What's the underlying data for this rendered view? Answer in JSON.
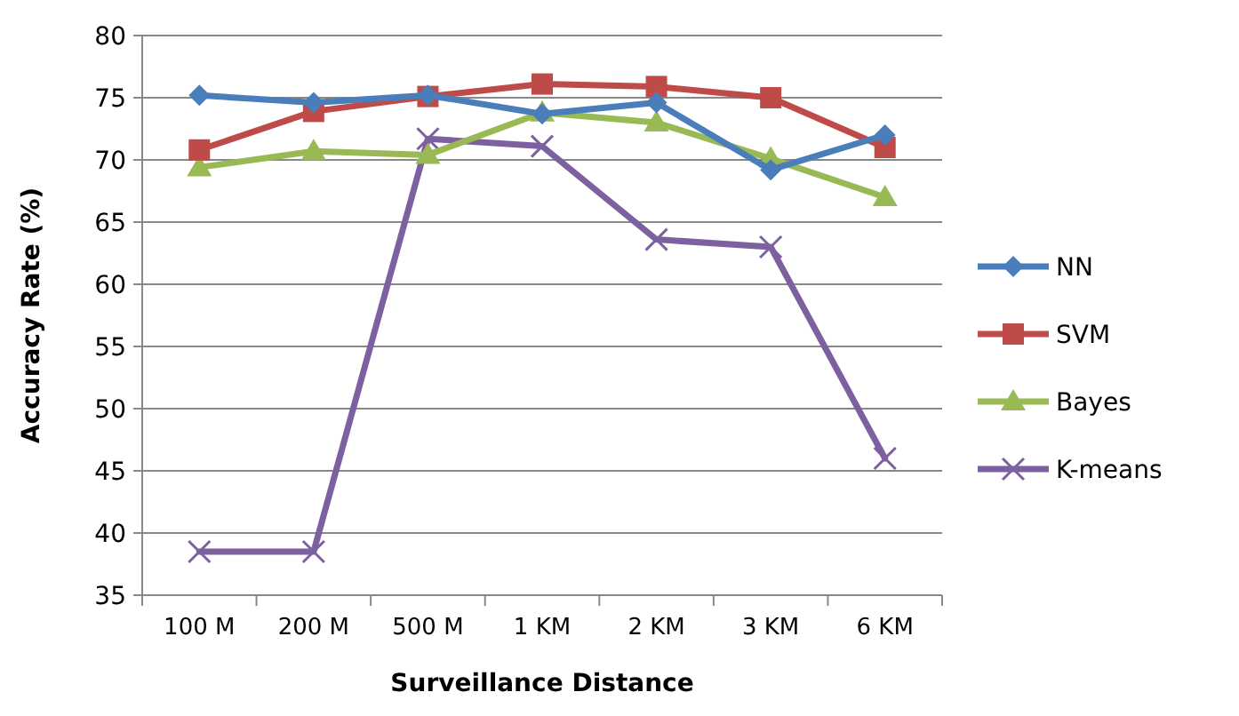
{
  "chart_data": {
    "type": "line",
    "xlabel": "Surveillance Distance",
    "ylabel": "Accuracy Rate (%)",
    "categories": [
      "100 M",
      "200 M",
      "500 M",
      "1 KM",
      "2 KM",
      "3 KM",
      "6 KM"
    ],
    "series": [
      {
        "name": "NN",
        "color": "#4a7ebb",
        "marker": "diamond",
        "values": [
          75.2,
          74.6,
          75.2,
          73.7,
          74.6,
          69.2,
          72
        ]
      },
      {
        "name": "SVM",
        "color": "#be4b48",
        "marker": "square",
        "values": [
          70.8,
          73.9,
          75.1,
          76.1,
          75.9,
          75,
          71
        ]
      },
      {
        "name": "Bayes",
        "color": "#98b954",
        "marker": "triangle",
        "values": [
          69.4,
          70.7,
          70.4,
          73.8,
          73,
          70.1,
          67
        ]
      },
      {
        "name": "K-means",
        "color": "#7d60a0",
        "marker": "cross",
        "values": [
          38.5,
          38.5,
          71.7,
          71.1,
          63.6,
          63,
          46
        ]
      }
    ],
    "ylim": [
      35,
      80
    ],
    "yticks": [
      35,
      40,
      45,
      50,
      55,
      60,
      65,
      70,
      75,
      80
    ],
    "grid": "y",
    "legend": "right",
    "line_style": "solid"
  }
}
